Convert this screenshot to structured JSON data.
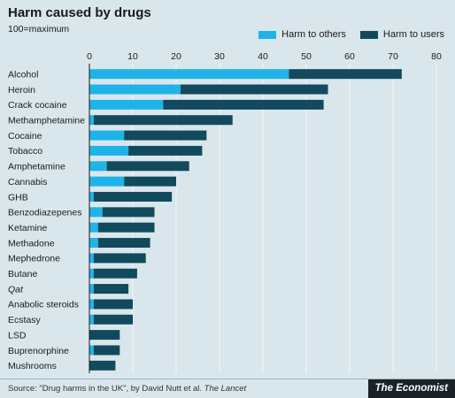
{
  "chart_data": {
    "type": "bar",
    "orientation": "horizontal",
    "stacked": true,
    "title": "Harm caused by drugs",
    "subtitle": "100=maximum",
    "xlim": [
      0,
      80
    ],
    "x_ticks": [
      0,
      10,
      20,
      30,
      40,
      50,
      60,
      70,
      80
    ],
    "grid": true,
    "legend_position": "top-right",
    "categories": [
      "Alcohol",
      "Heroin",
      "Crack cocaine",
      "Methamphetamine",
      "Cocaine",
      "Tobacco",
      "Amphetamine",
      "Cannabis",
      "GHB",
      "Benzodiazepenes",
      "Ketamine",
      "Methadone",
      "Mephedrone",
      "Butane",
      "Qat",
      "Anabolic steroids",
      "Ecstasy",
      "LSD",
      "Buprenorphine",
      "Mushrooms"
    ],
    "italic_categories": [
      "Qat"
    ],
    "series": [
      {
        "name": "Harm to others",
        "color": "#1fb4e8",
        "values": [
          46,
          21,
          17,
          1,
          8,
          9,
          4,
          8,
          1,
          3,
          2,
          2,
          1,
          1,
          1,
          1,
          1,
          0,
          1,
          0
        ]
      },
      {
        "name": "Harm to users",
        "color": "#114a5c",
        "values": [
          26,
          34,
          37,
          32,
          19,
          17,
          19,
          12,
          18,
          12,
          13,
          12,
          12,
          10,
          8,
          9,
          9,
          7,
          6,
          6
        ]
      }
    ]
  },
  "footer": {
    "source_prefix": "Source: \"Drug harms in the UK\", by David Nutt et al. ",
    "source_journal": "The Lancet",
    "brand": "The Economist"
  }
}
